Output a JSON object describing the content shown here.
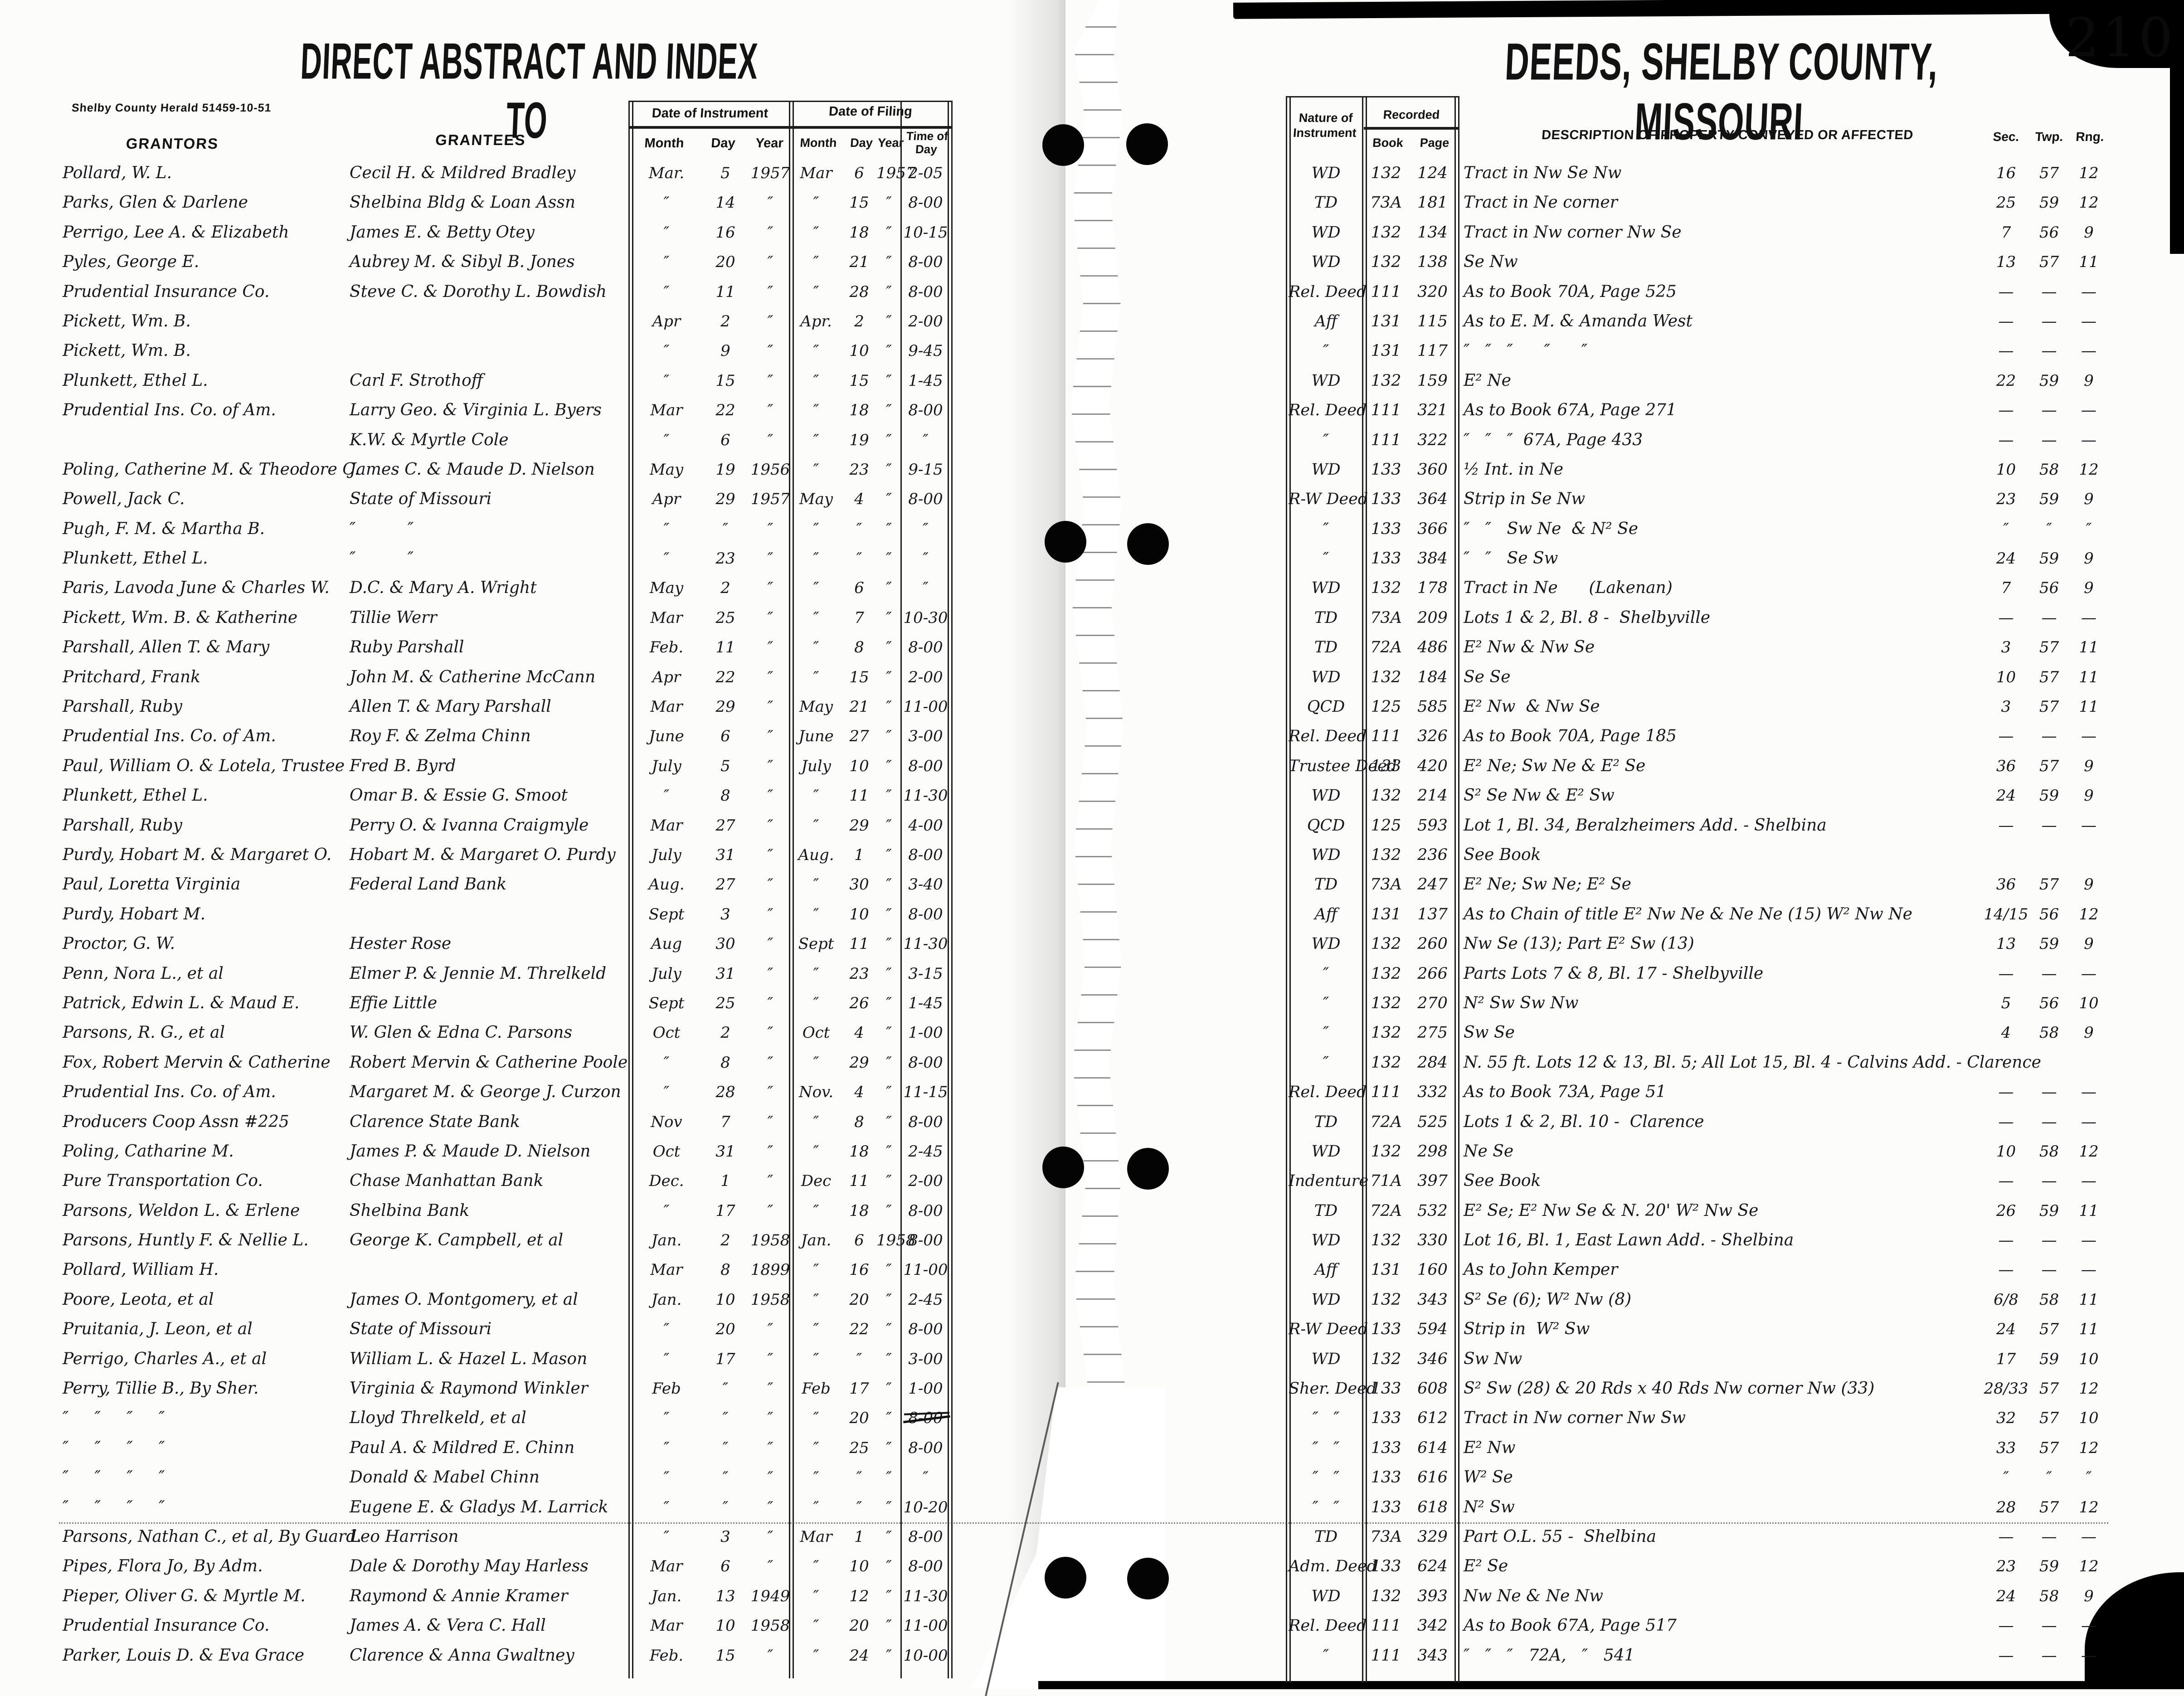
{
  "header_left": {
    "title": "DIRECT ABSTRACT AND INDEX TO",
    "imprint": "Shelby County Herald  51459-10-51"
  },
  "header_right": {
    "title": "DEEDS, SHELBY COUNTY, MISSOURI",
    "page_number": "210"
  },
  "columns_left": {
    "grantors": "GRANTORS",
    "grantees": "GRANTEES",
    "date_of_instrument": "Date of Instrument",
    "date_of_filing": "Date of Filing",
    "month": "Month",
    "day": "Day",
    "year": "Year",
    "time_of_day": "Time of Day"
  },
  "columns_right": {
    "nature_of_instrument": "Nature of Instrument",
    "recorded": "Recorded",
    "book": "Book",
    "page": "Page",
    "description": "DESCRIPTION OF PROPERTY CONVEYED OR AFFECTED",
    "sec": "Sec.",
    "twp": "Twp.",
    "rng": "Rng."
  },
  "rows": [
    {
      "g": "Pollard, W. L.",
      "e": "Cecil H. & Mildred Bradley",
      "im": "Mar.",
      "id": "5",
      "iy": "1957",
      "fm": "Mar",
      "fd": "6",
      "fy": "1957",
      "t": "2-05",
      "n": "WD",
      "b": "132",
      "p": "124",
      "d": "Tract in Nw Se Nw",
      "s": "16",
      "tw": "57",
      "r": "12"
    },
    {
      "g": "Parks, Glen & Darlene",
      "e": "Shelbina Bldg & Loan Assn",
      "im": "″",
      "id": "14",
      "iy": "″",
      "fm": "″",
      "fd": "15",
      "fy": "″",
      "t": "8-00",
      "n": "TD",
      "b": "73A",
      "p": "181",
      "d": "Tract in Ne corner",
      "s": "25",
      "tw": "59",
      "r": "12"
    },
    {
      "g": "Perrigo, Lee A. & Elizabeth",
      "e": "James E. & Betty Otey",
      "im": "″",
      "id": "16",
      "iy": "″",
      "fm": "″",
      "fd": "18",
      "fy": "″",
      "t": "10-15",
      "n": "WD",
      "b": "132",
      "p": "134",
      "d": "Tract in Nw corner Nw Se",
      "s": "7",
      "tw": "56",
      "r": "9"
    },
    {
      "g": "Pyles, George E.",
      "e": "Aubrey M. & Sibyl B. Jones",
      "im": "″",
      "id": "20",
      "iy": "″",
      "fm": "″",
      "fd": "21",
      "fy": "″",
      "t": "8-00",
      "n": "WD",
      "b": "132",
      "p": "138",
      "d": "Se Nw",
      "s": "13",
      "tw": "57",
      "r": "11"
    },
    {
      "g": "Prudential Insurance Co.",
      "e": "Steve C. & Dorothy L. Bowdish",
      "im": "″",
      "id": "11",
      "iy": "″",
      "fm": "″",
      "fd": "28",
      "fy": "″",
      "t": "8-00",
      "n": "Rel. Deed",
      "b": "111",
      "p": "320",
      "d": "As to Book 70A, Page 525",
      "s": "—",
      "tw": "—",
      "r": "—"
    },
    {
      "g": "Pickett, Wm. B.",
      "e": "",
      "im": "Apr",
      "id": "2",
      "iy": "″",
      "fm": "Apr.",
      "fd": "2",
      "fy": "″",
      "t": "2-00",
      "n": "Aff",
      "b": "131",
      "p": "115",
      "d": "As to E. M. & Amanda West",
      "s": "—",
      "tw": "—",
      "r": "—"
    },
    {
      "g": "Pickett, Wm. B.",
      "e": "",
      "im": "″",
      "id": "9",
      "iy": "″",
      "fm": "″",
      "fd": "10",
      "fy": "″",
      "t": "9-45",
      "n": "″",
      "b": "131",
      "p": "117",
      "d": "″   ″   ″      ″      ″",
      "s": "—",
      "tw": "—",
      "r": "—"
    },
    {
      "g": "Plunkett, Ethel L.",
      "e": "Carl F. Strothoff",
      "im": "″",
      "id": "15",
      "iy": "″",
      "fm": "″",
      "fd": "15",
      "fy": "″",
      "t": "1-45",
      "n": "WD",
      "b": "132",
      "p": "159",
      "d": "E² Ne",
      "s": "22",
      "tw": "59",
      "r": "9"
    },
    {
      "g": "Prudential Ins. Co. of Am.",
      "e": "Larry Geo. & Virginia L. Byers",
      "im": "Mar",
      "id": "22",
      "iy": "″",
      "fm": "″",
      "fd": "18",
      "fy": "″",
      "t": "8-00",
      "n": "Rel. Deed",
      "b": "111",
      "p": "321",
      "d": "As to Book 67A, Page 271",
      "s": "—",
      "tw": "—",
      "r": "—"
    },
    {
      "g": "",
      "e": "K.W. & Myrtle Cole",
      "im": "″",
      "id": "6",
      "iy": "″",
      "fm": "″",
      "fd": "19",
      "fy": "″",
      "t": "″",
      "n": "″",
      "b": "111",
      "p": "322",
      "d": "″   ″   ″  67A, Page 433",
      "s": "—",
      "tw": "—",
      "r": "—"
    },
    {
      "g": "Poling, Catherine M. & Theodore C.",
      "e": "James C. & Maude D. Nielson",
      "im": "May",
      "id": "19",
      "iy": "1956",
      "fm": "″",
      "fd": "23",
      "fy": "″",
      "t": "9-15",
      "n": "WD",
      "b": "133",
      "p": "360",
      "d": "½ Int. in Ne",
      "s": "10",
      "tw": "58",
      "r": "12"
    },
    {
      "g": "Powell, Jack C.",
      "e": "State of Missouri",
      "im": "Apr",
      "id": "29",
      "iy": "1957",
      "fm": "May",
      "fd": "4",
      "fy": "″",
      "t": "8-00",
      "n": "R-W Deed",
      "b": "133",
      "p": "364",
      "d": "Strip in Se Nw",
      "s": "23",
      "tw": "59",
      "r": "9"
    },
    {
      "g": "Pugh, F. M. & Martha B.",
      "e": "″          ″",
      "im": "″",
      "id": "″",
      "iy": "″",
      "fm": "″",
      "fd": "″",
      "fy": "″",
      "t": "″",
      "n": "″",
      "b": "133",
      "p": "366",
      "d": "″   ″   Sw Ne  & N² Se",
      "s": "″",
      "tw": "″",
      "r": "″"
    },
    {
      "g": "Plunkett, Ethel L.",
      "e": "″          ″",
      "im": "″",
      "id": "23",
      "iy": "″",
      "fm": "″",
      "fd": "″",
      "fy": "″",
      "t": "″",
      "n": "″",
      "b": "133",
      "p": "384",
      "d": "″   ″   Se Sw",
      "s": "24",
      "tw": "59",
      "r": "9"
    },
    {
      "g": "Paris, Lavoda June & Charles W.",
      "e": "D.C. & Mary A. Wright",
      "im": "May",
      "id": "2",
      "iy": "″",
      "fm": "″",
      "fd": "6",
      "fy": "″",
      "t": "″",
      "n": "WD",
      "b": "132",
      "p": "178",
      "d": "Tract in Ne      (Lakenan)",
      "s": "7",
      "tw": "56",
      "r": "9"
    },
    {
      "g": "Pickett, Wm. B. & Katherine",
      "e": "Tillie Werr",
      "im": "Mar",
      "id": "25",
      "iy": "″",
      "fm": "″",
      "fd": "7",
      "fy": "″",
      "t": "10-30",
      "n": "TD",
      "b": "73A",
      "p": "209",
      "d": "Lots 1 & 2, Bl. 8 -  Shelbyville",
      "s": "—",
      "tw": "—",
      "r": "—"
    },
    {
      "g": "Parshall, Allen T. & Mary",
      "e": "Ruby Parshall",
      "im": "Feb.",
      "id": "11",
      "iy": "″",
      "fm": "″",
      "fd": "8",
      "fy": "″",
      "t": "8-00",
      "n": "TD",
      "b": "72A",
      "p": "486",
      "d": "E² Nw & Nw Se",
      "s": "3",
      "tw": "57",
      "r": "11"
    },
    {
      "g": "Pritchard, Frank",
      "e": "John M. & Catherine McCann",
      "im": "Apr",
      "id": "22",
      "iy": "″",
      "fm": "″",
      "fd": "15",
      "fy": "″",
      "t": "2-00",
      "n": "WD",
      "b": "132",
      "p": "184",
      "d": "Se Se",
      "s": "10",
      "tw": "57",
      "r": "11"
    },
    {
      "g": "Parshall, Ruby",
      "e": "Allen T. & Mary Parshall",
      "im": "Mar",
      "id": "29",
      "iy": "″",
      "fm": "May",
      "fd": "21",
      "fy": "″",
      "t": "11-00",
      "n": "QCD",
      "b": "125",
      "p": "585",
      "d": "E² Nw  & Nw Se",
      "s": "3",
      "tw": "57",
      "r": "11"
    },
    {
      "g": "Prudential Ins. Co. of Am.",
      "e": "Roy F. & Zelma Chinn",
      "im": "June",
      "id": "6",
      "iy": "″",
      "fm": "June",
      "fd": "27",
      "fy": "″",
      "t": "3-00",
      "n": "Rel. Deed",
      "b": "111",
      "p": "326",
      "d": "As to Book 70A, Page 185",
      "s": "—",
      "tw": "—",
      "r": "—"
    },
    {
      "g": "Paul, William O. & Lotela, Trustee",
      "e": "Fred B. Byrd",
      "im": "July",
      "id": "5",
      "iy": "″",
      "fm": "July",
      "fd": "10",
      "fy": "″",
      "t": "8-00",
      "n": "Trustee Deed",
      "b": "133",
      "p": "420",
      "d": "E² Ne; Sw Ne & E² Se",
      "s": "36",
      "tw": "57",
      "r": "9"
    },
    {
      "g": "Plunkett, Ethel L.",
      "e": "Omar B. & Essie G. Smoot",
      "im": "″",
      "id": "8",
      "iy": "″",
      "fm": "″",
      "fd": "11",
      "fy": "″",
      "t": "11-30",
      "n": "WD",
      "b": "132",
      "p": "214",
      "d": "S² Se Nw & E² Sw",
      "s": "24",
      "tw": "59",
      "r": "9"
    },
    {
      "g": "Parshall, Ruby",
      "e": "Perry O. & Ivanna Craigmyle",
      "im": "Mar",
      "id": "27",
      "iy": "″",
      "fm": "″",
      "fd": "29",
      "fy": "″",
      "t": "4-00",
      "n": "QCD",
      "b": "125",
      "p": "593",
      "d": "Lot 1, Bl. 34, Beralzheimers Add. - Shelbina",
      "s": "—",
      "tw": "—",
      "r": "—"
    },
    {
      "g": "Purdy, Hobart M. & Margaret O.",
      "e": "Hobart M. & Margaret O. Purdy",
      "im": "July",
      "id": "31",
      "iy": "″",
      "fm": "Aug.",
      "fd": "1",
      "fy": "″",
      "t": "8-00",
      "n": "WD",
      "b": "132",
      "p": "236",
      "d": "See Book",
      "s": "",
      "tw": "",
      "r": ""
    },
    {
      "g": "Paul, Loretta Virginia",
      "e": "Federal Land Bank",
      "im": "Aug.",
      "id": "27",
      "iy": "″",
      "fm": "″",
      "fd": "30",
      "fy": "″",
      "t": "3-40",
      "n": "TD",
      "b": "73A",
      "p": "247",
      "d": "E² Ne; Sw Ne; E² Se",
      "s": "36",
      "tw": "57",
      "r": "9"
    },
    {
      "g": "Purdy, Hobart M.",
      "e": "",
      "im": "Sept",
      "id": "3",
      "iy": "″",
      "fm": "″",
      "fd": "10",
      "fy": "″",
      "t": "8-00",
      "n": "Aff",
      "b": "131",
      "p": "137",
      "d": "As to Chain of title E² Nw Ne & Ne Ne (15) W² Nw Ne",
      "s": "14/15",
      "tw": "56",
      "r": "12"
    },
    {
      "g": "Proctor, G. W.",
      "e": "Hester Rose",
      "im": "Aug",
      "id": "30",
      "iy": "″",
      "fm": "Sept",
      "fd": "11",
      "fy": "″",
      "t": "11-30",
      "n": "WD",
      "b": "132",
      "p": "260",
      "d": "Nw Se (13); Part E² Sw (13)",
      "s": "13",
      "tw": "59",
      "r": "9"
    },
    {
      "g": "Penn, Nora L., et al",
      "e": "Elmer P. & Jennie M. Threlkeld",
      "im": "July",
      "id": "31",
      "iy": "″",
      "fm": "″",
      "fd": "23",
      "fy": "″",
      "t": "3-15",
      "n": "″",
      "b": "132",
      "p": "266",
      "d": "Parts Lots 7 & 8, Bl. 17 - Shelbyville",
      "s": "—",
      "tw": "—",
      "r": "—"
    },
    {
      "g": "Patrick, Edwin L. & Maud E.",
      "e": "Effie Little",
      "im": "Sept",
      "id": "25",
      "iy": "″",
      "fm": "″",
      "fd": "26",
      "fy": "″",
      "t": "1-45",
      "n": "″",
      "b": "132",
      "p": "270",
      "d": "N² Sw Sw Nw",
      "s": "5",
      "tw": "56",
      "r": "10"
    },
    {
      "g": "Parsons, R. G., et al",
      "e": "W. Glen & Edna C. Parsons",
      "im": "Oct",
      "id": "2",
      "iy": "″",
      "fm": "Oct",
      "fd": "4",
      "fy": "″",
      "t": "1-00",
      "n": "″",
      "b": "132",
      "p": "275",
      "d": "Sw Se",
      "s": "4",
      "tw": "58",
      "r": "9"
    },
    {
      "g": "Fox, Robert Mervin & Catherine",
      "e": "Robert Mervin & Catherine Poole",
      "im": "″",
      "id": "8",
      "iy": "″",
      "fm": "″",
      "fd": "29",
      "fy": "″",
      "t": "8-00",
      "n": "″",
      "b": "132",
      "p": "284",
      "d": "N. 55 ft. Lots 12 & 13, Bl. 5; All Lot 15, Bl. 4 - Calvins Add. - Clarence",
      "s": "",
      "tw": "",
      "r": ""
    },
    {
      "g": "Prudential Ins. Co. of Am.",
      "e": "Margaret M. & George J. Curzon",
      "im": "″",
      "id": "28",
      "iy": "″",
      "fm": "Nov.",
      "fd": "4",
      "fy": "″",
      "t": "11-15",
      "n": "Rel. Deed",
      "b": "111",
      "p": "332",
      "d": "As to Book 73A, Page 51",
      "s": "—",
      "tw": "—",
      "r": "—"
    },
    {
      "g": "Producers Coop Assn #225",
      "e": "Clarence State Bank",
      "im": "Nov",
      "id": "7",
      "iy": "″",
      "fm": "″",
      "fd": "8",
      "fy": "″",
      "t": "8-00",
      "n": "TD",
      "b": "72A",
      "p": "525",
      "d": "Lots 1 & 2, Bl. 10 -  Clarence",
      "s": "—",
      "tw": "—",
      "r": "—"
    },
    {
      "g": "Poling, Catharine M.",
      "e": "James P. & Maude D. Nielson",
      "im": "Oct",
      "id": "31",
      "iy": "″",
      "fm": "″",
      "fd": "18",
      "fy": "″",
      "t": "2-45",
      "n": "WD",
      "b": "132",
      "p": "298",
      "d": "Ne Se",
      "s": "10",
      "tw": "58",
      "r": "12"
    },
    {
      "g": "Pure Transportation Co.",
      "e": "Chase Manhattan Bank",
      "im": "Dec.",
      "id": "1",
      "iy": "″",
      "fm": "Dec",
      "fd": "11",
      "fy": "″",
      "t": "2-00",
      "n": "Indenture",
      "b": "71A",
      "p": "397",
      "d": "See Book",
      "s": "—",
      "tw": "—",
      "r": "—"
    },
    {
      "g": "Parsons, Weldon L. & Erlene",
      "e": "Shelbina Bank",
      "im": "″",
      "id": "17",
      "iy": "″",
      "fm": "″",
      "fd": "18",
      "fy": "″",
      "t": "8-00",
      "n": "TD",
      "b": "72A",
      "p": "532",
      "d": "E² Se; E² Nw Se & N. 20' W² Nw Se",
      "s": "26",
      "tw": "59",
      "r": "11"
    },
    {
      "g": "Parsons, Huntly F. & Nellie L.",
      "e": "George K. Campbell, et al",
      "im": "Jan.",
      "id": "2",
      "iy": "1958",
      "fm": "Jan.",
      "fd": "6",
      "fy": "1958",
      "t": "8-00",
      "n": "WD",
      "b": "132",
      "p": "330",
      "d": "Lot 16, Bl. 1, East Lawn Add. - Shelbina",
      "s": "—",
      "tw": "—",
      "r": "—"
    },
    {
      "g": "Pollard, William H.",
      "e": "",
      "im": "Mar",
      "id": "8",
      "iy": "1899",
      "fm": "″",
      "fd": "16",
      "fy": "″",
      "t": "11-00",
      "n": "Aff",
      "b": "131",
      "p": "160",
      "d": "As to John Kemper",
      "s": "—",
      "tw": "—",
      "r": "—"
    },
    {
      "g": "Poore, Leota, et al",
      "e": "James O. Montgomery, et al",
      "im": "Jan.",
      "id": "10",
      "iy": "1958",
      "fm": "″",
      "fd": "20",
      "fy": "″",
      "t": "2-45",
      "n": "WD",
      "b": "132",
      "p": "343",
      "d": "S² Se (6); W² Nw (8)",
      "s": "6/8",
      "tw": "58",
      "r": "11"
    },
    {
      "g": "Pruitania, J. Leon, et al",
      "e": "State of Missouri",
      "im": "″",
      "id": "20",
      "iy": "″",
      "fm": "″",
      "fd": "22",
      "fy": "″",
      "t": "8-00",
      "n": "R-W Deed",
      "b": "133",
      "p": "594",
      "d": "Strip in  W² Sw",
      "s": "24",
      "tw": "57",
      "r": "11"
    },
    {
      "g": "Perrigo, Charles A., et al",
      "e": "William L. & Hazel L. Mason",
      "im": "″",
      "id": "17",
      "iy": "″",
      "fm": "″",
      "fd": "″",
      "fy": "″",
      "t": "3-00",
      "n": "WD",
      "b": "132",
      "p": "346",
      "d": "Sw Nw",
      "s": "17",
      "tw": "59",
      "r": "10"
    },
    {
      "g": "Perry, Tillie B., By Sher.",
      "e": "Virginia & Raymond Winkler",
      "im": "Feb",
      "id": "″",
      "iy": "″",
      "fm": "Feb",
      "fd": "17",
      "fy": "″",
      "t": "1-00",
      "n": "Sher. Deed",
      "b": "133",
      "p": "608",
      "d": "S² Sw (28) & 20 Rds x 40 Rds Nw corner Nw (33)",
      "s": "28/33",
      "tw": "57",
      "r": "12"
    },
    {
      "g": "″     ″     ″     ″",
      "e": "Lloyd Threlkeld, et al",
      "im": "″",
      "id": "″",
      "iy": "″",
      "fm": "″",
      "fd": "20",
      "fy": "″",
      "t": "8-00",
      "n": "″   ″",
      "b": "133",
      "p": "612",
      "d": "Tract in Nw corner Nw Sw",
      "s": "32",
      "tw": "57",
      "r": "10"
    },
    {
      "g": "″     ″     ″     ″",
      "e": "Paul A. & Mildred E. Chinn",
      "im": "″",
      "id": "″",
      "iy": "″",
      "fm": "″",
      "fd": "25",
      "fy": "″",
      "t": "8-00",
      "n": "″   ″",
      "b": "133",
      "p": "614",
      "d": "E² Nw",
      "s": "33",
      "tw": "57",
      "r": "12"
    },
    {
      "g": "″     ″     ″     ″",
      "e": "Donald & Mabel Chinn",
      "im": "″",
      "id": "″",
      "iy": "″",
      "fm": "″",
      "fd": "″",
      "fy": "″",
      "t": "″",
      "n": "″   ″",
      "b": "133",
      "p": "616",
      "d": "W² Se",
      "s": "″",
      "tw": "″",
      "r": "″"
    },
    {
      "g": "″     ″     ″     ″",
      "e": "Eugene E. & Gladys M. Larrick",
      "im": "″",
      "id": "″",
      "iy": "″",
      "fm": "″",
      "fd": "″",
      "fy": "″",
      "t": "10-20",
      "n": "″   ″",
      "b": "133",
      "p": "618",
      "d": "N² Sw",
      "s": "28",
      "tw": "57",
      "r": "12"
    },
    {
      "g": "Parsons, Nathan C., et al, By Guard.",
      "e": "Leo Harrison",
      "im": "″",
      "id": "3",
      "iy": "″",
      "fm": "Mar",
      "fd": "1",
      "fy": "″",
      "t": "8-00",
      "n": "TD",
      "b": "73A",
      "p": "329",
      "d": "Part O.L. 55 -  Shelbina",
      "s": "—",
      "tw": "—",
      "r": "—"
    },
    {
      "g": "Pipes, Flora Jo, By Adm.",
      "e": "Dale & Dorothy May Harless",
      "im": "Mar",
      "id": "6",
      "iy": "″",
      "fm": "″",
      "fd": "10",
      "fy": "″",
      "t": "8-00",
      "n": "Adm. Deed",
      "b": "133",
      "p": "624",
      "d": "E² Se",
      "s": "23",
      "tw": "59",
      "r": "12"
    },
    {
      "g": "Pieper, Oliver G. & Myrtle M.",
      "e": "Raymond & Annie Kramer",
      "im": "Jan.",
      "id": "13",
      "iy": "1949",
      "fm": "″",
      "fd": "12",
      "fy": "″",
      "t": "11-30",
      "n": "WD",
      "b": "132",
      "p": "393",
      "d": "Nw Ne & Ne Nw",
      "s": "24",
      "tw": "58",
      "r": "9"
    },
    {
      "g": "Prudential Insurance Co.",
      "e": "James A. & Vera C. Hall",
      "im": "Mar",
      "id": "10",
      "iy": "1958",
      "fm": "″",
      "fd": "20",
      "fy": "″",
      "t": "11-00",
      "n": "Rel. Deed",
      "b": "111",
      "p": "342",
      "d": "As to Book 67A, Page 517",
      "s": "—",
      "tw": "—",
      "r": "—"
    },
    {
      "g": "Parker, Louis D. & Eva Grace",
      "e": "Clarence & Anna Gwaltney",
      "im": "Feb.",
      "id": "15",
      "iy": "″",
      "fm": "″",
      "fd": "24",
      "fy": "″",
      "t": "10-00",
      "n": "″",
      "b": "111",
      "p": "343",
      "d": "″   ″   ″   72A,   ″   541",
      "s": "—",
      "tw": "—",
      "r": "—"
    }
  ]
}
